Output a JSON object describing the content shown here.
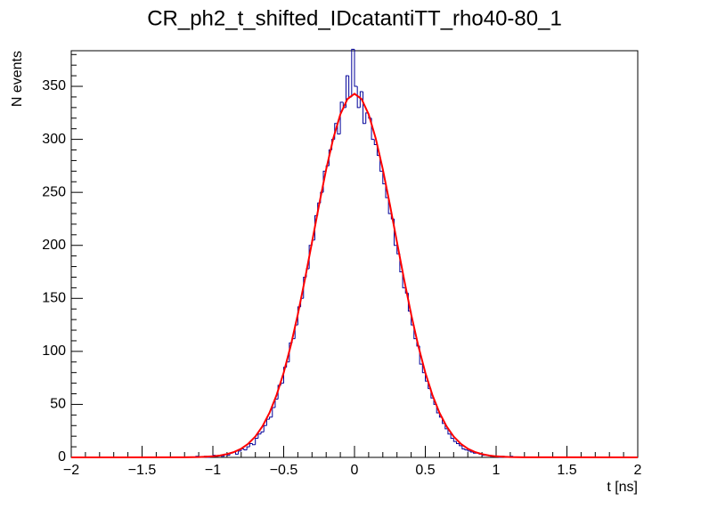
{
  "chart_data": {
    "type": "histogram",
    "title": "CR_ph2_t_shifted_IDcatantiTT_rho40-80_1",
    "x_label": "t [ns]",
    "y_label": "N events",
    "color": "#000099",
    "bins": [
      -2,
      -1.2,
      -1.18,
      -1.16,
      -1.14,
      -1.12,
      -1.1,
      -1.08,
      -1.06,
      -1.04,
      -1.02,
      -1,
      -0.98,
      -0.96,
      -0.94,
      -0.92,
      -0.9,
      -0.88,
      -0.86,
      -0.84,
      -0.82,
      -0.8,
      -0.78,
      -0.76,
      -0.74,
      -0.72,
      -0.7,
      -0.68,
      -0.66,
      -0.64,
      -0.62,
      -0.6,
      -0.58,
      -0.56,
      -0.54,
      -0.52,
      -0.5,
      -0.48,
      -0.46,
      -0.44,
      -0.42,
      -0.4,
      -0.38,
      -0.36,
      -0.34,
      -0.32,
      -0.3,
      -0.28,
      -0.26,
      -0.24,
      -0.22,
      -0.2,
      -0.18,
      -0.16,
      -0.14,
      -0.12,
      -0.1,
      -0.08,
      -0.06,
      -0.04,
      -0.02,
      0,
      0.02,
      0.04,
      0.06,
      0.08,
      0.1,
      0.12,
      0.14,
      0.16,
      0.18,
      0.2,
      0.22,
      0.24,
      0.26,
      0.28,
      0.3,
      0.32,
      0.34,
      0.36,
      0.38,
      0.4,
      0.42,
      0.44,
      0.46,
      0.48,
      0.5,
      0.52,
      0.54,
      0.56,
      0.58,
      0.6,
      0.62,
      0.64,
      0.66,
      0.68,
      0.7,
      0.72,
      0.74,
      0.76,
      0.78,
      0.8,
      0.82,
      0.84,
      0.86,
      0.88,
      0.9,
      0.92,
      0.94,
      0.96,
      0.98,
      1,
      1.02,
      1.04,
      1.06,
      1.08,
      1.1,
      1.12,
      1.14,
      1.16,
      1.18,
      1.2,
      2
    ],
    "values": [
      0,
      0,
      0,
      0,
      0,
      1,
      0,
      0,
      1,
      0,
      1,
      2,
      1,
      2,
      1,
      3,
      2,
      4,
      5,
      3,
      6,
      8,
      7,
      10,
      13,
      12,
      18,
      22,
      24,
      30,
      36,
      38,
      47,
      55,
      68,
      70,
      85,
      90,
      108,
      112,
      125,
      142,
      150,
      170,
      178,
      200,
      205,
      228,
      240,
      250,
      270,
      275,
      290,
      300,
      315,
      305,
      335,
      330,
      360,
      340,
      385,
      350,
      330,
      345,
      315,
      325,
      320,
      300,
      295,
      285,
      270,
      258,
      245,
      230,
      225,
      200,
      192,
      175,
      160,
      155,
      138,
      125,
      112,
      105,
      88,
      80,
      72,
      65,
      56,
      50,
      42,
      38,
      32,
      27,
      22,
      18,
      15,
      13,
      11,
      8,
      7,
      6,
      5,
      4,
      4,
      3,
      2,
      2,
      2,
      1,
      1,
      1,
      0,
      1,
      0,
      0,
      1,
      0,
      0,
      0,
      0,
      0
    ],
    "series": [
      {
        "type": "line",
        "color": "#ff0000",
        "x": [
          -2,
          -1.2,
          -1.1,
          -1.05,
          -1,
          -0.95,
          -0.9,
          -0.85,
          -0.8,
          -0.75,
          -0.7,
          -0.65,
          -0.6,
          -0.55,
          -0.5,
          -0.45,
          -0.4,
          -0.35,
          -0.3,
          -0.25,
          -0.2,
          -0.15,
          -0.1,
          -0.05,
          0,
          0.05,
          0.1,
          0.15,
          0.2,
          0.25,
          0.3,
          0.35,
          0.4,
          0.45,
          0.5,
          0.55,
          0.6,
          0.65,
          0.7,
          0.75,
          0.8,
          0.85,
          0.9,
          0.95,
          1,
          1.05,
          1.1,
          1.2,
          2
        ],
        "values": [
          0,
          0.1,
          0.3,
          0.6,
          1,
          1.8,
          3.1,
          5.1,
          8.2,
          12.9,
          19.7,
          29.3,
          42.1,
          58.9,
          79.9,
          105.4,
          135,
          168,
          203,
          238.3,
          271.7,
          300.8,
          323.6,
          338,
          343,
          338,
          323.6,
          300.8,
          271.7,
          238.3,
          203,
          168,
          135,
          105.4,
          79.9,
          58.9,
          42.1,
          29.3,
          19.7,
          12.9,
          8.2,
          5.1,
          3.1,
          1.8,
          1,
          0.6,
          0.3,
          0.1,
          0
        ]
      }
    ],
    "xlim": [
      -2,
      2
    ],
    "ylim": [
      0,
      383.6
    ],
    "xticks": [
      {
        "value": -2,
        "label": "−2"
      },
      {
        "value": -1.5,
        "label": "−1.5"
      },
      {
        "value": -1,
        "label": "−1"
      },
      {
        "value": -0.5,
        "label": "−0.5"
      },
      0,
      0.5,
      1,
      1.5,
      2
    ],
    "yticks": [
      0,
      50,
      100,
      150,
      200,
      250,
      300,
      350
    ]
  }
}
